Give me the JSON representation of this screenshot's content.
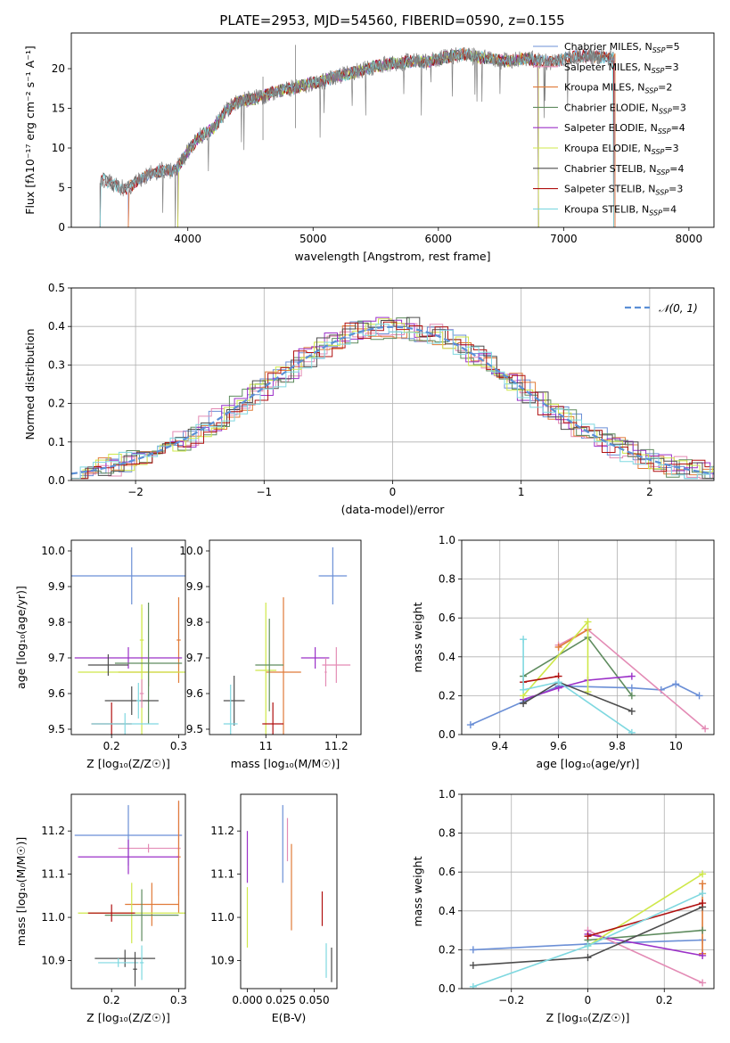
{
  "figure_title": "PLATE=2953, MJD=54560, FIBERID=0590, z=0.155",
  "colors": {
    "Chabrier MILES": "#6b8fd6",
    "Salpeter MILES": "#e38bb5",
    "Kroupa MILES": "#e07b39",
    "Chabrier ELODIE": "#5f8c5f",
    "Salpeter ELODIE": "#9b30c8",
    "Kroupa ELODIE": "#cfe84a",
    "Chabrier STELIB": "#4d4d4d",
    "Salpeter STELIB": "#b01010",
    "Kroupa STELIB": "#7fd8e0",
    "normal_curve": "#5b8fd6",
    "spectrum_gray": "#808080"
  },
  "chart_data": [
    {
      "id": "spectrum",
      "type": "line",
      "title": "PLATE=2953, MJD=54560, FIBERID=0590, z=0.155",
      "xlabel": "wavelength [Angstrom, rest frame]",
      "ylabel": "Flux [fλ10⁻¹⁷ erg cm⁻² s⁻¹ A⁻¹]",
      "xlim": [
        3070,
        8200
      ],
      "ylim": [
        0,
        24.5
      ],
      "xticks": [
        4000,
        5000,
        6000,
        7000,
        8000
      ],
      "yticks": [
        0,
        5,
        10,
        15,
        20
      ],
      "grid": false,
      "legend_position": "top-right",
      "legend": [
        "Chabrier MILES, N_SSP=5",
        "Salpeter MILES, N_SSP=3",
        "Kroupa MILES, N_SSP=2",
        "Chabrier ELODIE, N_SSP=3",
        "Salpeter ELODIE, N_SSP=4",
        "Kroupa ELODIE, N_SSP=3",
        "Chabrier STELIB, N_SSP=4",
        "Salpeter STELIB, N_SSP=3",
        "Kroupa STELIB, N_SSP=4"
      ],
      "observed_spectrum_wavelength": [
        3300,
        3400,
        3500,
        3600,
        3700,
        3800,
        3900,
        4000,
        4100,
        4200,
        4300,
        4400,
        4500,
        4600,
        4700,
        4800,
        4900,
        5000,
        5100,
        5200,
        5300,
        5400,
        5500,
        5600,
        5700,
        5800,
        5900,
        6000,
        6100,
        6200,
        6300,
        6400,
        6500,
        6600,
        6700,
        6800,
        6900,
        7000,
        7100,
        7200,
        7300,
        7400
      ],
      "observed_spectrum_flux": [
        6.3,
        5.4,
        4.8,
        5.8,
        6.8,
        7.2,
        7.1,
        9.6,
        11.5,
        12.4,
        14.6,
        15.8,
        16.2,
        16.5,
        17.2,
        17.4,
        17.8,
        18.2,
        18.5,
        19.0,
        19.4,
        19.9,
        20.3,
        20.6,
        20.7,
        21.0,
        20.8,
        21.2,
        21.6,
        21.8,
        21.5,
        21.3,
        21.0,
        21.1,
        21.3,
        21.0,
        20.8,
        21.2,
        21.6,
        21.6,
        21.5,
        21.3
      ],
      "model_wavelength_ranges": {
        "MILES": [
          3525,
          7410
        ],
        "ELODIE": [
          3920,
          6800
        ],
        "STELIB": [
          3300,
          7400
        ]
      }
    },
    {
      "id": "residuals",
      "type": "line",
      "xlabel": "(data-model)/error",
      "ylabel": "Normed distribution",
      "xlim": [
        -2.5,
        2.5
      ],
      "ylim": [
        0,
        0.5
      ],
      "xticks": [
        -2,
        -1,
        0,
        1,
        2
      ],
      "yticks": [
        0.0,
        0.1,
        0.2,
        0.3,
        0.4,
        0.5
      ],
      "grid": true,
      "legend_position": "top-right",
      "legend": [
        "𝒩(0, 1)"
      ],
      "bin_width": 0.1,
      "reference_curve": "normal(0,1)"
    },
    {
      "id": "Z_age",
      "type": "scatter",
      "xlabel": "Z [log₁₀(Z/Z☉)]",
      "ylabel": "age  [log₁₀(age/yr)]",
      "xlim": [
        0.14,
        0.31
      ],
      "ylim": [
        9.485,
        10.03
      ],
      "xticks": [
        0.2,
        0.3
      ],
      "yticks": [
        9.5,
        9.6,
        9.7,
        9.8,
        9.9,
        10.0
      ],
      "grid": false,
      "points": [
        {
          "series": "Chabrier MILES",
          "x": 0.23,
          "y": 9.93,
          "xerr": 0.09,
          "yerr": 0.08
        },
        {
          "series": "Kroupa MILES",
          "x": 0.255,
          "y": 9.66,
          "xerr": 0.045,
          "yerr": 0.04
        },
        {
          "series": "Kroupa MILES",
          "x": 0.3,
          "y": 9.75,
          "xerr": 0.003,
          "yerr": 0.12
        },
        {
          "series": "Kroupa ELODIE",
          "x": 0.245,
          "y": 9.66,
          "xerr": 0.095,
          "yerr": 0.19
        },
        {
          "series": "Kroupa ELODIE",
          "x": 0.245,
          "y": 9.75,
          "xerr": 0.003,
          "yerr": 0.09
        },
        {
          "series": "Salpeter ELODIE",
          "x": 0.225,
          "y": 9.7,
          "xerr": 0.08,
          "yerr": 0.03
        },
        {
          "series": "Chabrier ELODIE",
          "x": 0.255,
          "y": 9.685,
          "xerr": 0.05,
          "yerr": 0.17
        },
        {
          "series": "Chabrier STELIB",
          "x": 0.23,
          "y": 9.58,
          "xerr": 0.04,
          "yerr": 0.04
        },
        {
          "series": "Chabrier STELIB",
          "x": 0.195,
          "y": 9.68,
          "xerr": 0.03,
          "yerr": 0.03
        },
        {
          "series": "Salpeter STELIB",
          "x": 0.2,
          "y": 9.515,
          "xerr": 0.03,
          "yerr": 0.06
        },
        {
          "series": "Kroupa STELIB",
          "x": 0.22,
          "y": 9.515,
          "xerr": 0.05,
          "yerr": 0.03
        },
        {
          "series": "Kroupa STELIB",
          "x": 0.24,
          "y": 9.58,
          "xerr": 0.003,
          "yerr": 0.05
        },
        {
          "series": "Salpeter MILES",
          "x": 0.245,
          "y": 9.6,
          "xerr": 0.003,
          "yerr": 0.04
        }
      ]
    },
    {
      "id": "mass_age",
      "type": "scatter",
      "xlabel": "mass [log₁₀(M/M☉)]",
      "ylabel": "",
      "xlim": [
        10.84,
        11.27
      ],
      "ylim": [
        9.485,
        10.03
      ],
      "xticks": [
        11.0,
        11.2
      ],
      "yticks": [
        9.5,
        9.6,
        9.7,
        9.8,
        9.9,
        10.0
      ],
      "grid": false,
      "points": [
        {
          "series": "Chabrier MILES",
          "x": 11.19,
          "y": 9.93,
          "xerr": 0.04,
          "yerr": 0.08
        },
        {
          "series": "Salpeter MILES",
          "x": 11.2,
          "y": 9.68,
          "xerr": 0.04,
          "yerr": 0.05
        },
        {
          "series": "Kroupa MILES",
          "x": 11.05,
          "y": 9.66,
          "xerr": 0.05,
          "yerr": 0.21
        },
        {
          "series": "Kroupa ELODIE",
          "x": 11.0,
          "y": 9.665,
          "xerr": 0.03,
          "yerr": 0.19
        },
        {
          "series": "Salpeter ELODIE",
          "x": 11.14,
          "y": 9.7,
          "xerr": 0.04,
          "yerr": 0.03
        },
        {
          "series": "Chabrier ELODIE",
          "x": 11.01,
          "y": 9.68,
          "xerr": 0.04,
          "yerr": 0.13
        },
        {
          "series": "Chabrier STELIB",
          "x": 10.91,
          "y": 9.58,
          "xerr": 0.03,
          "yerr": 0.07
        },
        {
          "series": "Salpeter STELIB",
          "x": 11.02,
          "y": 9.515,
          "xerr": 0.03,
          "yerr": 0.06
        },
        {
          "series": "Kroupa STELIB",
          "x": 10.9,
          "y": 9.515,
          "xerr": 0.02,
          "yerr": 0.11
        },
        {
          "series": "Salpeter MILES",
          "x": 11.17,
          "y": 9.66,
          "xerr": 0.003,
          "yerr": 0.04
        }
      ]
    },
    {
      "id": "age_weight",
      "type": "line",
      "xlabel": "age  [log₁₀(age/yr)]",
      "ylabel": "mass weight",
      "xlim": [
        9.27,
        10.13
      ],
      "ylim": [
        0,
        1.0
      ],
      "xticks": [
        9.4,
        9.6,
        9.8,
        10.0
      ],
      "yticks": [
        0.0,
        0.2,
        0.4,
        0.6,
        0.8,
        1.0
      ],
      "grid": true,
      "series": [
        {
          "name": "Chabrier MILES",
          "x": [
            9.3,
            9.6,
            9.85,
            9.95,
            10.0,
            10.08
          ],
          "y": [
            0.05,
            0.25,
            0.24,
            0.23,
            0.26,
            0.2
          ]
        },
        {
          "name": "Salpeter MILES",
          "x": [
            9.6,
            9.7,
            10.1
          ],
          "y": [
            0.46,
            0.54,
            0.03
          ]
        },
        {
          "name": "Kroupa MILES",
          "x": [
            9.6,
            9.7
          ],
          "y": [
            0.45,
            0.54
          ]
        },
        {
          "name": "Chabrier ELODIE",
          "x": [
            9.48,
            9.7,
            9.85
          ],
          "y": [
            0.3,
            0.5,
            0.2
          ]
        },
        {
          "name": "Salpeter ELODIE",
          "x": [
            9.48,
            9.6,
            9.7,
            9.85
          ],
          "y": [
            0.18,
            0.24,
            0.28,
            0.3
          ]
        },
        {
          "name": "Kroupa ELODIE",
          "x": [
            9.48,
            9.7,
            9.7
          ],
          "y": [
            0.2,
            0.58,
            0.22
          ]
        },
        {
          "name": "Chabrier STELIB",
          "x": [
            9.48,
            9.6,
            9.85
          ],
          "y": [
            0.16,
            0.27,
            0.12
          ]
        },
        {
          "name": "Salpeter STELIB",
          "x": [
            9.48,
            9.6
          ],
          "y": [
            0.27,
            0.3
          ]
        },
        {
          "name": "Kroupa STELIB",
          "x": [
            9.48,
            9.48,
            9.6,
            9.85
          ],
          "y": [
            0.49,
            0.23,
            0.27,
            0.01
          ]
        }
      ]
    },
    {
      "id": "Z_mass",
      "type": "scatter",
      "xlabel": "Z [log₁₀(Z/Z☉)]",
      "ylabel": "mass [log₁₀(M/M☉)]",
      "xlim": [
        0.14,
        0.31
      ],
      "ylim": [
        10.835,
        11.285
      ],
      "xticks": [
        0.2,
        0.3
      ],
      "yticks": [
        10.9,
        11.0,
        11.1,
        11.2
      ],
      "grid": false,
      "points": [
        {
          "series": "Chabrier MILES",
          "x": 0.225,
          "y": 11.19,
          "xerr": 0.08,
          "yerr": 0.07
        },
        {
          "series": "Salpeter MILES",
          "x": 0.255,
          "y": 11.16,
          "xerr": 0.045,
          "yerr": 0.01
        },
        {
          "series": "Salpeter MILES",
          "x": 0.3,
          "y": 11.16,
          "xerr": 0.003,
          "yerr": 0.11
        },
        {
          "series": "Kroupa MILES",
          "x": 0.26,
          "y": 11.03,
          "xerr": 0.04,
          "yerr": 0.05
        },
        {
          "series": "Kroupa MILES",
          "x": 0.3,
          "y": 11.14,
          "xerr": 0.003,
          "yerr": 0.13
        },
        {
          "series": "Salpeter ELODIE",
          "x": 0.225,
          "y": 11.14,
          "xerr": 0.075,
          "yerr": 0.04
        },
        {
          "series": "Kroupa ELODIE",
          "x": 0.23,
          "y": 11.01,
          "xerr": 0.08,
          "yerr": 0.07
        },
        {
          "series": "Chabrier ELODIE",
          "x": 0.245,
          "y": 11.005,
          "xerr": 0.055,
          "yerr": 0.06
        },
        {
          "series": "Salpeter STELIB",
          "x": 0.2,
          "y": 11.01,
          "xerr": 0.035,
          "yerr": 0.02
        },
        {
          "series": "Chabrier STELIB",
          "x": 0.22,
          "y": 10.905,
          "xerr": 0.045,
          "yerr": 0.02
        },
        {
          "series": "Kroupa STELIB",
          "x": 0.21,
          "y": 10.895,
          "xerr": 0.03,
          "yerr": 0.01
        },
        {
          "series": "Kroupa STELIB",
          "x": 0.245,
          "y": 10.895,
          "xerr": 0.003,
          "yerr": 0.04
        },
        {
          "series": "Chabrier STELIB",
          "x": 0.235,
          "y": 10.88,
          "xerr": 0.003,
          "yerr": 0.04
        }
      ]
    },
    {
      "id": "EBV_mass",
      "type": "scatter",
      "xlabel": "E(B-V)",
      "ylabel": "",
      "xlim": [
        -0.005,
        0.067
      ],
      "ylim": [
        10.835,
        11.285
      ],
      "xticks": [
        0.0,
        0.025,
        0.05
      ],
      "xticklabels": [
        "0.000",
        "0.025",
        "0.050"
      ],
      "yticks": [
        10.9,
        11.0,
        11.1,
        11.2
      ],
      "grid": false,
      "points": [
        {
          "series": "Salpeter ELODIE",
          "x": 0.0,
          "y": 11.14,
          "xerr": 0,
          "yerr": 0.06
        },
        {
          "series": "Kroupa ELODIE",
          "x": 0.0,
          "y": 11.0,
          "xerr": 0,
          "yerr": 0.07
        },
        {
          "series": "Chabrier MILES",
          "x": 0.0265,
          "y": 11.17,
          "xerr": 0,
          "yerr": 0.09
        },
        {
          "series": "Salpeter MILES",
          "x": 0.03,
          "y": 11.18,
          "xerr": 0,
          "yerr": 0.05
        },
        {
          "series": "Kroupa MILES",
          "x": 0.033,
          "y": 11.07,
          "xerr": 0,
          "yerr": 0.1
        },
        {
          "series": "Salpeter STELIB",
          "x": 0.056,
          "y": 11.02,
          "xerr": 0,
          "yerr": 0.04
        },
        {
          "series": "Kroupa STELIB",
          "x": 0.059,
          "y": 10.9,
          "xerr": 0,
          "yerr": 0.04
        },
        {
          "series": "Chabrier STELIB",
          "x": 0.063,
          "y": 10.89,
          "xerr": 0,
          "yerr": 0.04
        }
      ]
    },
    {
      "id": "Z_weight",
      "type": "line",
      "xlabel": "Z [log₁₀(Z/Z☉)]",
      "ylabel": "mass weight",
      "xlim": [
        -0.33,
        0.33
      ],
      "ylim": [
        0,
        1.0
      ],
      "xticks": [
        -0.2,
        0.0,
        0.2
      ],
      "yticks": [
        0.0,
        0.2,
        0.4,
        0.6,
        0.8,
        1.0
      ],
      "grid": true,
      "series": [
        {
          "name": "Chabrier MILES",
          "x": [
            -0.3,
            0.0,
            0.3
          ],
          "y": [
            0.2,
            0.23,
            0.25
          ]
        },
        {
          "name": "Salpeter MILES",
          "x": [
            0.0,
            0.3
          ],
          "y": [
            0.3,
            0.03
          ]
        },
        {
          "name": "Kroupa MILES",
          "x": [
            0.3,
            0.3
          ],
          "y": [
            0.18,
            0.54
          ]
        },
        {
          "name": "Chabrier ELODIE",
          "x": [
            0.0,
            0.3
          ],
          "y": [
            0.25,
            0.3
          ]
        },
        {
          "name": "Salpeter ELODIE",
          "x": [
            0.0,
            0.3
          ],
          "y": [
            0.28,
            0.17
          ]
        },
        {
          "name": "Kroupa ELODIE",
          "x": [
            0.0,
            0.3
          ],
          "y": [
            0.22,
            0.59
          ]
        },
        {
          "name": "Chabrier STELIB",
          "x": [
            -0.3,
            0.0,
            0.3
          ],
          "y": [
            0.12,
            0.16,
            0.42
          ]
        },
        {
          "name": "Salpeter STELIB",
          "x": [
            0.0,
            0.3
          ],
          "y": [
            0.27,
            0.44
          ]
        },
        {
          "name": "Kroupa STELIB",
          "x": [
            -0.3,
            0.0,
            0.3
          ],
          "y": [
            0.01,
            0.22,
            0.49
          ]
        }
      ]
    }
  ]
}
